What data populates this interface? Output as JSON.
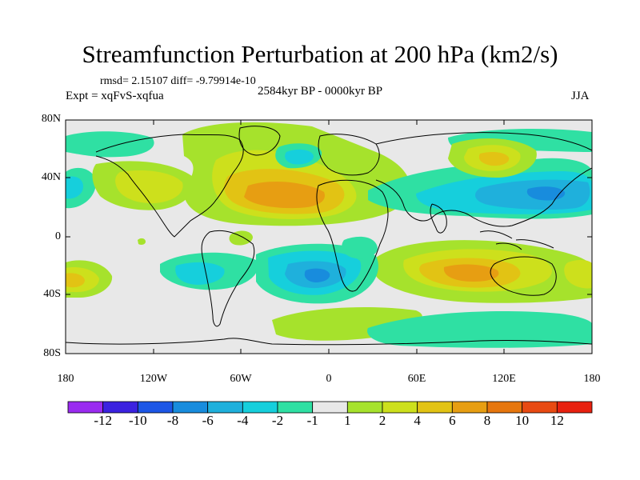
{
  "title": "Streamfunction Perturbation at 200 hPa (km2/s)",
  "stats_line": "rmsd= 2.15107 diff= -9.79914e-10",
  "period": "2584kyr BP - 0000kyr BP",
  "experiment": "Expt = xqFvS-xqfua",
  "season": "JJA",
  "lat_labels": [
    "80N",
    "40N",
    "0",
    "40S",
    "80S"
  ],
  "lon_labels": [
    "180",
    "120W",
    "60W",
    "0",
    "60E",
    "120E",
    "180"
  ],
  "colorbar": {
    "labels": [
      "-12",
      "-10",
      "-8",
      "-6",
      "-4",
      "-2",
      "-1",
      "1",
      "2",
      "4",
      "6",
      "8",
      "10",
      "12"
    ],
    "colors": [
      "#9a2bf0",
      "#3b22e0",
      "#1c56e6",
      "#188cdd",
      "#1fb0dc",
      "#16cfdc",
      "#2fe0a3",
      "#e8e8e8",
      "#a6e22c",
      "#cde01c",
      "#e2c314",
      "#e79e12",
      "#e6760d",
      "#e84a12",
      "#e8210f"
    ]
  },
  "field_features": [
    {
      "region": "subtropical-north-atlantic",
      "level": "6"
    },
    {
      "region": "north-atlantic-high",
      "level": "4"
    },
    {
      "region": "west-pacific-low",
      "level": "-6"
    },
    {
      "region": "south-atlantic-low",
      "level": "-4"
    },
    {
      "region": "indian-ocean-south-high",
      "level": "4"
    },
    {
      "region": "south-east-pacific-low",
      "level": "-2"
    }
  ]
}
